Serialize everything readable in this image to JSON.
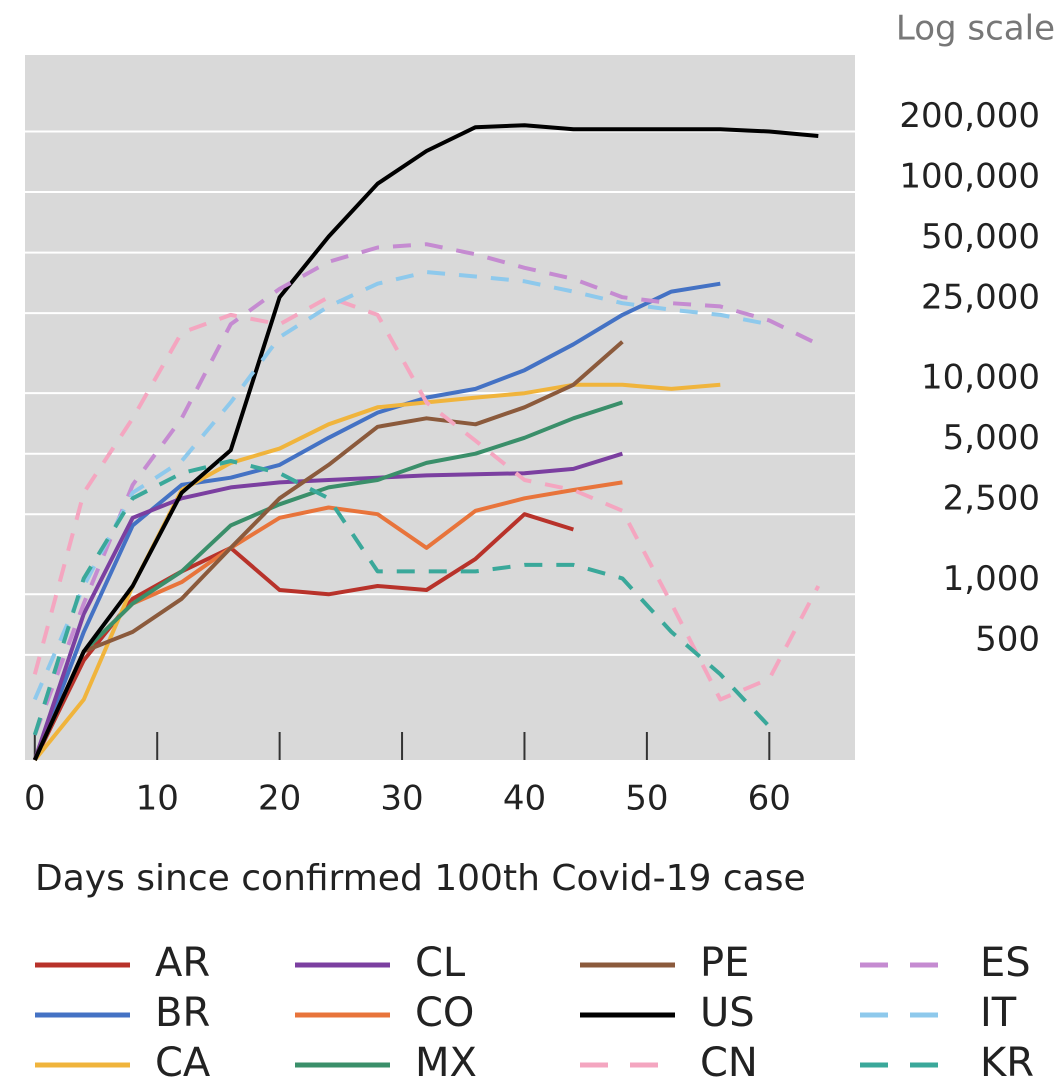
{
  "chart_data": {
    "type": "line",
    "y_scale": "log",
    "y_scale_label": "Log scale",
    "x_label": "Days since confirmed 100th Covid-19 case",
    "x": [
      0,
      4,
      8,
      12,
      16,
      20,
      24,
      28,
      32,
      36,
      40,
      44,
      48,
      52,
      56,
      60,
      64
    ],
    "xlim": [
      -0.8,
      67
    ],
    "xticks": [
      0,
      10,
      20,
      30,
      40,
      50,
      60
    ],
    "ylim": [
      150,
      480000
    ],
    "yticks": [
      {
        "value": 200000,
        "label": "200,000"
      },
      {
        "value": 100000,
        "label": "100,000"
      },
      {
        "value": 50000,
        "label": "50,000"
      },
      {
        "value": 25000,
        "label": "25,000"
      },
      {
        "value": 10000,
        "label": "10,000"
      },
      {
        "value": 5000,
        "label": "5,000"
      },
      {
        "value": 2500,
        "label": "2,500"
      },
      {
        "value": 1000,
        "label": "1,000"
      },
      {
        "value": 500,
        "label": "500"
      }
    ],
    "grid": true,
    "legend": "bottom",
    "series": [
      {
        "name": "AR",
        "color": "#b8322a",
        "dash": false,
        "values": [
          150,
          470,
          950,
          1300,
          1700,
          1050,
          1000,
          1100,
          1050,
          1500,
          2500,
          2100,
          null,
          null,
          null,
          null,
          null
        ]
      },
      {
        "name": "BR",
        "color": "#4472c4",
        "dash": false,
        "values": [
          150,
          650,
          2200,
          3500,
          3800,
          4400,
          6000,
          8000,
          9500,
          10500,
          13000,
          17500,
          24500,
          32000,
          35000,
          null,
          null
        ]
      },
      {
        "name": "CA",
        "color": "#f0b43c",
        "dash": false,
        "values": [
          150,
          300,
          1100,
          3300,
          4500,
          5300,
          7000,
          8500,
          9000,
          9500,
          10000,
          11000,
          11000,
          10500,
          11000,
          null,
          null
        ]
      },
      {
        "name": "CL",
        "color": "#7b3fa0",
        "dash": false,
        "values": [
          150,
          800,
          2400,
          3000,
          3400,
          3600,
          3700,
          3800,
          3900,
          3950,
          4000,
          4200,
          5000,
          null,
          null,
          null,
          null
        ]
      },
      {
        "name": "CO",
        "color": "#e8743b",
        "dash": false,
        "values": [
          150,
          520,
          900,
          1150,
          1700,
          2400,
          2700,
          2500,
          1700,
          2600,
          3000,
          3300,
          3600,
          null,
          null,
          null,
          null
        ]
      },
      {
        "name": "MX",
        "color": "#3a8f6a",
        "dash": false,
        "values": [
          150,
          520,
          900,
          1300,
          2200,
          2800,
          3400,
          3700,
          4500,
          5000,
          6000,
          7500,
          9000,
          null,
          null,
          null,
          null
        ]
      },
      {
        "name": "PE",
        "color": "#8b5a3c",
        "dash": false,
        "values": [
          150,
          520,
          650,
          950,
          1700,
          3000,
          4400,
          6800,
          7500,
          7000,
          8500,
          11000,
          18000,
          null,
          null,
          null,
          null
        ]
      },
      {
        "name": "US",
        "color": "#000000",
        "dash": false,
        "values": [
          150,
          520,
          1100,
          3200,
          5200,
          30000,
          60000,
          110000,
          160000,
          210000,
          215000,
          205000,
          205000,
          205000,
          205000,
          200000,
          190000
        ]
      },
      {
        "name": "CN",
        "color": "#f4a6c0",
        "dash": true,
        "values": [
          400,
          3200,
          7500,
          20000,
          24500,
          22000,
          30000,
          24500,
          9000,
          5800,
          3700,
          3300,
          2600,
          900,
          300,
          380,
          1100
        ]
      },
      {
        "name": "ES",
        "color": "#c58bd1",
        "dash": true,
        "values": [
          200,
          900,
          3500,
          7500,
          22000,
          33000,
          45000,
          53000,
          55000,
          49000,
          42000,
          37000,
          30000,
          28000,
          27000,
          23000,
          17500
        ]
      },
      {
        "name": "IT",
        "color": "#8ec9ec",
        "dash": true,
        "values": [
          300,
          1100,
          3200,
          4600,
          9000,
          19000,
          27000,
          35000,
          40000,
          38000,
          36000,
          32000,
          28000,
          26000,
          24500,
          22000,
          null
        ]
      },
      {
        "name": "KR",
        "color": "#3aa89a",
        "dash": true,
        "values": [
          200,
          1200,
          3000,
          4000,
          4600,
          4000,
          3000,
          1300,
          1300,
          1300,
          1400,
          1400,
          1200,
          650,
          400,
          220,
          null
        ]
      }
    ]
  }
}
